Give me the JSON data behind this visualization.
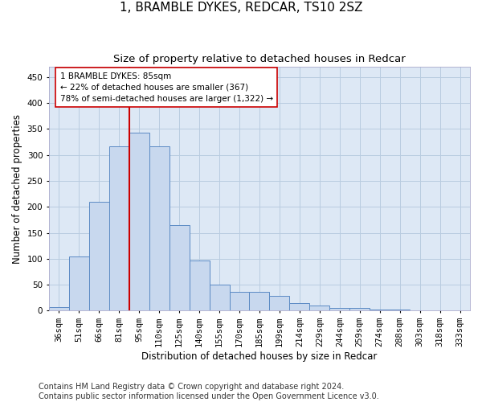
{
  "title": "1, BRAMBLE DYKES, REDCAR, TS10 2SZ",
  "subtitle": "Size of property relative to detached houses in Redcar",
  "xlabel": "Distribution of detached houses by size in Redcar",
  "ylabel": "Number of detached properties",
  "categories": [
    "36sqm",
    "51sqm",
    "66sqm",
    "81sqm",
    "95sqm",
    "110sqm",
    "125sqm",
    "140sqm",
    "155sqm",
    "170sqm",
    "185sqm",
    "199sqm",
    "214sqm",
    "229sqm",
    "244sqm",
    "259sqm",
    "274sqm",
    "288sqm",
    "303sqm",
    "318sqm",
    "333sqm"
  ],
  "values": [
    7,
    105,
    210,
    317,
    343,
    317,
    165,
    97,
    50,
    36,
    36,
    29,
    15,
    9,
    5,
    5,
    2,
    2,
    1,
    1,
    1
  ],
  "bar_color": "#c8d8ee",
  "bar_edge_color": "#5b8ac4",
  "vline_color": "#cc0000",
  "vline_x_index": 3.5,
  "annotation_text": "1 BRAMBLE DYKES: 85sqm\n← 22% of detached houses are smaller (367)\n78% of semi-detached houses are larger (1,322) →",
  "annotation_box_color": "#ffffff",
  "annotation_box_edge": "#cc0000",
  "ylim": [
    0,
    470
  ],
  "yticks": [
    0,
    50,
    100,
    150,
    200,
    250,
    300,
    350,
    400,
    450
  ],
  "footer": "Contains HM Land Registry data © Crown copyright and database right 2024.\nContains public sector information licensed under the Open Government Licence v3.0.",
  "background_color": "#ffffff",
  "plot_bg_color": "#dde8f5",
  "grid_color": "#b8cce0",
  "title_fontsize": 11,
  "subtitle_fontsize": 9.5,
  "axis_label_fontsize": 8.5,
  "tick_fontsize": 7.5,
  "footer_fontsize": 7,
  "annotation_fontsize": 7.5
}
